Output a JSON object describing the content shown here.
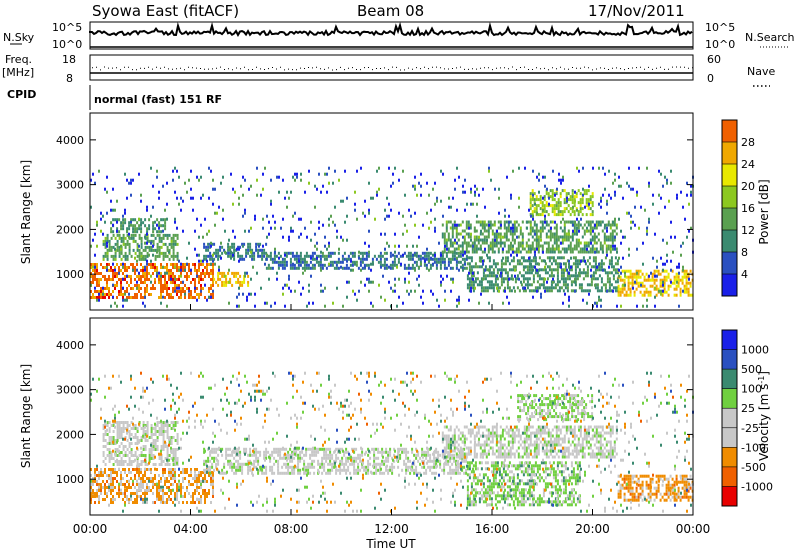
{
  "header": {
    "station": "Syowa East (fitACF)",
    "beam": "Beam 08",
    "date": "17/Nov/2011"
  },
  "side_labels": {
    "nsky": "N.Sky",
    "freq": "Freq.",
    "freq_unit": "[MHz]",
    "cpid": "CPID",
    "nsearch": "N.Search",
    "nave": "Nave"
  },
  "cpid_value": "normal (fast) 151 RF",
  "noise_panel": {
    "left_ticks": [
      "10^5",
      "10^0"
    ],
    "right_ticks": [
      "10^5",
      "10^0"
    ]
  },
  "freq_panel": {
    "left_ticks": [
      "18",
      "8"
    ],
    "right_ticks": [
      "60",
      "0"
    ]
  },
  "power_bar": {
    "label": "Power [dB]",
    "ticks": [
      "28",
      "24",
      "20",
      "16",
      "12",
      "8",
      "4"
    ]
  },
  "velocity_bar": {
    "label": "Velocity [m s",
    "label_sup": "-1",
    "label_end": "]",
    "ticks": [
      "1000",
      "500",
      "100",
      "25",
      "-25",
      "-100",
      "-500",
      "-1000"
    ]
  },
  "colors": {
    "power": [
      "#1a20e8",
      "#2a50c0",
      "#3a8a70",
      "#5aa050",
      "#8cc820",
      "#e8e800",
      "#f0a800",
      "#f06000",
      "#e80000"
    ],
    "velocity": [
      "#e80000",
      "#f06000",
      "#f08c00",
      "#c8c8c8",
      "#c8c8c8",
      "#70d040",
      "#3a8a70",
      "#2a50c0",
      "#1a20e8"
    ]
  },
  "chart_data": [
    {
      "type": "heatmap",
      "name": "power",
      "ylabel": "Slant Range [km]",
      "xlabel": "",
      "yticks": [
        1000,
        2000,
        3000,
        4000
      ],
      "ylim": [
        200,
        4600
      ],
      "xlim": [
        0,
        24
      ],
      "clim": [
        0,
        32
      ],
      "clabel": "Power [dB]",
      "regions": [
        {
          "t": [
            0.0,
            4.9
          ],
          "r": [
            500,
            1250
          ],
          "v": 26
        },
        {
          "t": [
            0.5,
            3.5
          ],
          "r": [
            1300,
            1900
          ],
          "v": 12
        },
        {
          "t": [
            0.8,
            3.0
          ],
          "r": [
            1950,
            2250
          ],
          "v": 10
        },
        {
          "t": [
            4.9,
            6.3
          ],
          "r": [
            750,
            1050
          ],
          "v": 22
        },
        {
          "t": [
            4.5,
            7.0
          ],
          "r": [
            1350,
            1700
          ],
          "v": 8
        },
        {
          "t": [
            7.0,
            15.0
          ],
          "r": [
            1150,
            1500
          ],
          "v": 8
        },
        {
          "t": [
            14.0,
            21.0
          ],
          "r": [
            1500,
            2200
          ],
          "v": 12
        },
        {
          "t": [
            17.5,
            20.0
          ],
          "r": [
            2300,
            2900
          ],
          "v": 16
        },
        {
          "t": [
            15.0,
            21.0
          ],
          "r": [
            600,
            1400
          ],
          "v": 10
        },
        {
          "t": [
            21.0,
            24.0
          ],
          "r": [
            500,
            1100
          ],
          "v": 22
        },
        {
          "t": [
            0.0,
            24.0
          ],
          "r": [
            300,
            3400
          ],
          "v": 6
        }
      ]
    },
    {
      "type": "heatmap",
      "name": "velocity",
      "ylabel": "Slant Range [km]",
      "xlabel": "Time UT",
      "xticks": [
        "00:00",
        "04:00",
        "08:00",
        "12:00",
        "16:00",
        "20:00",
        "00:00"
      ],
      "yticks": [
        1000,
        2000,
        3000,
        4000
      ],
      "ylim": [
        200,
        4600
      ],
      "xlim": [
        0,
        24
      ],
      "clim": [
        -1000,
        1000
      ],
      "clabel": "Velocity [m s-1]",
      "regions": [
        {
          "t": [
            0.0,
            4.9
          ],
          "r": [
            500,
            1250
          ],
          "v": -400
        },
        {
          "t": [
            0.5,
            3.5
          ],
          "r": [
            1300,
            2300
          ],
          "v": 0
        },
        {
          "t": [
            4.5,
            15.0
          ],
          "r": [
            1150,
            1700
          ],
          "v": 0
        },
        {
          "t": [
            14.0,
            21.0
          ],
          "r": [
            1500,
            2200
          ],
          "v": 0
        },
        {
          "t": [
            15.0,
            19.5
          ],
          "r": [
            400,
            1400
          ],
          "v": 200
        },
        {
          "t": [
            17.0,
            20.0
          ],
          "r": [
            2300,
            2900
          ],
          "v": 150
        },
        {
          "t": [
            21.0,
            24.0
          ],
          "r": [
            500,
            1100
          ],
          "v": -400
        },
        {
          "t": [
            0.0,
            24.0
          ],
          "r": [
            300,
            3400
          ],
          "v": 0
        }
      ]
    }
  ]
}
